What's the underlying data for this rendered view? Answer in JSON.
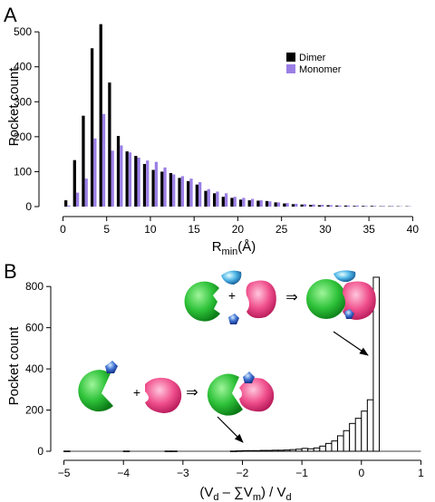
{
  "chart_data": [
    {
      "panel_label": "A",
      "type": "bar",
      "xlabel_main": "R",
      "xlabel_sub": "min",
      "xlabel_tail": "(Å)",
      "ylabel": "Pocket count",
      "xlim": [
        -1.5,
        41
      ],
      "ylim": [
        0,
        560
      ],
      "xticks": [
        0,
        5,
        10,
        15,
        20,
        25,
        30,
        35,
        40
      ],
      "yticks": [
        0,
        100,
        200,
        300,
        400,
        500
      ],
      "legend_position": "top-right",
      "colors": {
        "Dimer": "#000000",
        "Monomer": "#9b7fe6"
      },
      "series": [
        {
          "name": "Dimer",
          "x": [
            0.5,
            1.5,
            2.5,
            3.5,
            4.5,
            5.5,
            6.5,
            7.5,
            8.5,
            9.5,
            10.5,
            11.5,
            12.5,
            13.5,
            14.5,
            15.5,
            16.5,
            17.5,
            18.5,
            19.5,
            20.5,
            21.5,
            22.5,
            23.5,
            24.5,
            25.5,
            26.5,
            27.5,
            28.5,
            29.5,
            30.5,
            31.5,
            32.5,
            33.5,
            34.5,
            35.5,
            36.5,
            37.5,
            38.5,
            39.5
          ],
          "values": [
            18,
            133,
            260,
            453,
            522,
            355,
            202,
            158,
            145,
            122,
            105,
            100,
            96,
            82,
            73,
            63,
            45,
            38,
            28,
            25,
            20,
            18,
            17,
            16,
            12,
            9,
            7,
            6,
            5,
            4,
            4,
            3,
            3,
            2,
            2,
            2,
            1,
            1,
            1,
            1
          ]
        },
        {
          "name": "Monomer",
          "x": [
            0.5,
            1.5,
            2.5,
            3.5,
            4.5,
            5.5,
            6.5,
            7.5,
            8.5,
            9.5,
            10.5,
            11.5,
            12.5,
            13.5,
            14.5,
            15.5,
            16.5,
            17.5,
            18.5,
            19.5,
            20.5,
            21.5,
            22.5,
            23.5,
            24.5,
            25.5,
            26.5,
            27.5,
            28.5,
            29.5,
            30.5,
            31.5,
            32.5,
            33.5,
            34.5,
            35.5,
            36.5,
            37.5,
            38.5,
            39.5
          ],
          "values": [
            3,
            40,
            80,
            195,
            265,
            160,
            175,
            155,
            140,
            132,
            128,
            112,
            92,
            87,
            80,
            70,
            50,
            43,
            38,
            28,
            25,
            22,
            18,
            15,
            12,
            10,
            8,
            7,
            6,
            5,
            4,
            3,
            3,
            3,
            2,
            2,
            2,
            2,
            1,
            1
          ]
        }
      ]
    },
    {
      "panel_label": "B",
      "type": "bar",
      "xlabel": "(V",
      "xlabel_sub1": "d",
      "xlabel_mid": " – ∑V",
      "xlabel_sub2": "m",
      "xlabel_tail": ") / V",
      "xlabel_sub3": "d",
      "ylabel": "Pocket count",
      "xlim": [
        -5.1,
        1.1
      ],
      "ylim": [
        0,
        880
      ],
      "xticks": [
        -5,
        -4,
        -3,
        -2,
        -1,
        0,
        1
      ],
      "yticks": [
        0,
        200,
        400,
        600,
        800
      ],
      "bin_width": 0.1,
      "series": [
        {
          "name": "",
          "x_left": [
            -5.0,
            -4.9,
            -4.8,
            -4.7,
            -4.6,
            -4.5,
            -4.4,
            -4.3,
            -4.2,
            -4.1,
            -4.0,
            -3.9,
            -3.8,
            -3.7,
            -3.6,
            -3.5,
            -3.4,
            -3.3,
            -3.2,
            -3.1,
            -3.0,
            -2.9,
            -2.8,
            -2.7,
            -2.6,
            -2.5,
            -2.4,
            -2.3,
            -2.2,
            -2.1,
            -2.0,
            -1.9,
            -1.8,
            -1.7,
            -1.6,
            -1.5,
            -1.4,
            -1.3,
            -1.2,
            -1.1,
            -1.0,
            -0.9,
            -0.8,
            -0.7,
            -0.6,
            -0.5,
            -0.4,
            -0.3,
            -0.2,
            -0.1,
            0.0,
            0.1,
            0.2,
            0.3,
            0.4,
            0.5,
            0.6,
            0.7,
            0.8,
            0.9
          ],
          "values": [
            1,
            0,
            0,
            0,
            0,
            0,
            0,
            0,
            0,
            0,
            1,
            0,
            0,
            0,
            0,
            0,
            0,
            1,
            1,
            0,
            0,
            0,
            0,
            0,
            0,
            0,
            0,
            0,
            1,
            2,
            3,
            3,
            3,
            4,
            4,
            5,
            5,
            6,
            8,
            10,
            14,
            12,
            16,
            25,
            38,
            50,
            75,
            100,
            135,
            160,
            195,
            250,
            845,
            0,
            0,
            0,
            0,
            0,
            0,
            0
          ]
        }
      ]
    }
  ],
  "diagram_labels": {
    "plus": "+",
    "arrow": "⇒"
  }
}
